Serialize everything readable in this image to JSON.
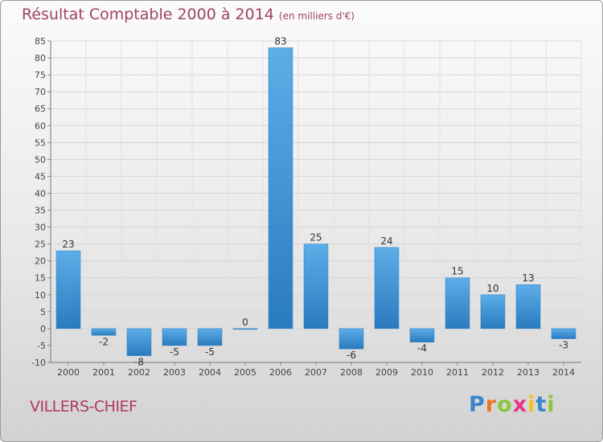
{
  "chart_data": {
    "type": "bar",
    "title": "Résultat Comptable 2000 à 2014",
    "subtitle": "(en milliers d'€)",
    "categories": [
      "2000",
      "2001",
      "2002",
      "2003",
      "2004",
      "2005",
      "2006",
      "2007",
      "2008",
      "2009",
      "2010",
      "2011",
      "2012",
      "2013",
      "2014"
    ],
    "values": [
      23,
      -2,
      -8,
      -5,
      -5,
      0,
      83,
      25,
      -6,
      24,
      -4,
      15,
      10,
      13,
      -3
    ],
    "value_labels": [
      "23",
      "-2",
      "-8",
      "-5",
      "-5",
      "0",
      "83",
      "25",
      "-6",
      "24",
      "-4",
      "15",
      "10",
      "13",
      "-3"
    ],
    "ylim": [
      -10,
      85
    ],
    "yticks": [
      -10,
      -5,
      0,
      5,
      10,
      15,
      20,
      25,
      30,
      35,
      40,
      45,
      50,
      55,
      60,
      65,
      70,
      75,
      80,
      85
    ],
    "grid": true,
    "xlabel": "",
    "ylabel": "",
    "bar_color": "#3d8fd0"
  },
  "footer": {
    "commune": "VILLERS-CHIEF",
    "logo_text": "Proxiti"
  }
}
